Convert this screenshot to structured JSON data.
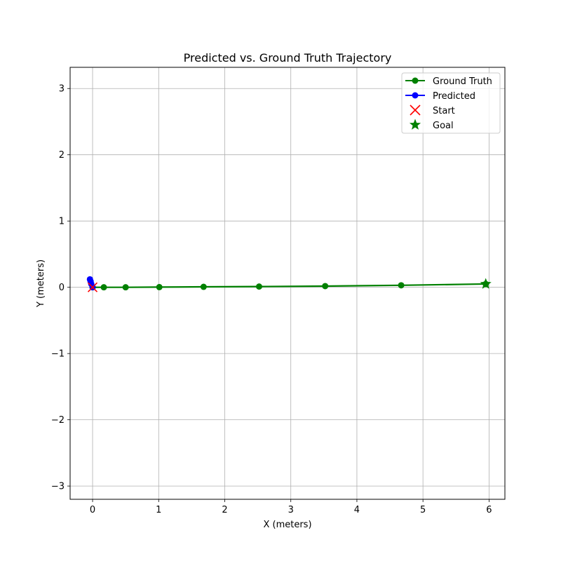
{
  "chart_data": {
    "type": "line",
    "title": "Predicted vs. Ground Truth Trajectory",
    "xlabel": "X (meters)",
    "ylabel": "Y (meters)",
    "xlim": [
      -0.34,
      6.24
    ],
    "ylim": [
      -3.2,
      3.32
    ],
    "xticks": [
      0,
      1,
      2,
      3,
      4,
      5,
      6
    ],
    "yticks": [
      -3,
      -2,
      -1,
      0,
      1,
      2,
      3
    ],
    "xtick_labels": [
      "0",
      "1",
      "2",
      "3",
      "4",
      "5",
      "6"
    ],
    "ytick_labels": [
      "−3",
      "−2",
      "−1",
      "0",
      "1",
      "2",
      "3"
    ],
    "grid": true,
    "legend_position": "top-right",
    "series": [
      {
        "name": "Ground Truth",
        "color": "#008000",
        "marker": "circle",
        "x": [
          0.0,
          0.17,
          0.5,
          1.01,
          1.68,
          2.52,
          3.52,
          4.67,
          5.95
        ],
        "y": [
          0.0,
          0.0,
          0.0,
          0.003,
          0.007,
          0.011,
          0.018,
          0.03,
          0.05
        ]
      },
      {
        "name": "Predicted",
        "color": "#0000ff",
        "marker": "circle",
        "x": [
          0.0,
          -0.02,
          -0.03,
          -0.04
        ],
        "y": [
          0.0,
          0.05,
          0.09,
          0.12
        ]
      }
    ],
    "points": [
      {
        "name": "Start",
        "marker": "x",
        "color": "#ff0000",
        "x": 0.0,
        "y": 0.0
      },
      {
        "name": "Goal",
        "marker": "star",
        "color": "#008000",
        "x": 5.95,
        "y": 0.05
      }
    ]
  }
}
